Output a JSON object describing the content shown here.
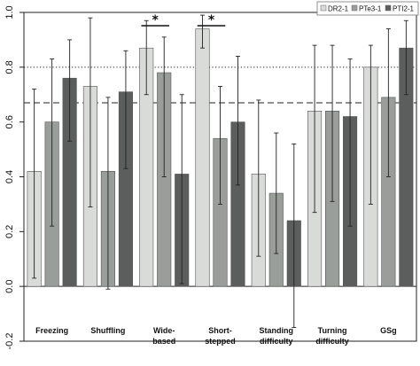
{
  "chart_data": {
    "type": "bar",
    "categories": [
      [
        "Freezing"
      ],
      [
        "Shuffling"
      ],
      [
        "Wide-",
        "based"
      ],
      [
        "Short-",
        "stepped"
      ],
      [
        "Standing",
        "difficulty"
      ],
      [
        "Turning",
        "difficulty"
      ],
      [
        "GSg"
      ]
    ],
    "series": [
      {
        "name": "DR2-1",
        "color": "#d9dbd9",
        "values": [
          0.42,
          0.73,
          0.87,
          0.94,
          0.41,
          0.64,
          0.8
        ],
        "error_low": [
          0.03,
          0.29,
          0.7,
          0.87,
          0.11,
          0.27,
          0.3
        ],
        "error_high": [
          0.72,
          0.98,
          0.97,
          0.99,
          0.68,
          0.88,
          0.88
        ]
      },
      {
        "name": "PTe3-1",
        "color": "#9a9e9b",
        "values": [
          0.6,
          0.42,
          0.78,
          0.54,
          0.34,
          0.64,
          0.69
        ],
        "error_low": [
          0.22,
          -0.01,
          0.4,
          0.3,
          0.12,
          0.31,
          0.4
        ],
        "error_high": [
          0.83,
          0.69,
          0.91,
          0.73,
          0.56,
          0.88,
          0.94
        ]
      },
      {
        "name": "PTI2-1",
        "color": "#5b5e5c",
        "values": [
          0.76,
          0.71,
          0.41,
          0.6,
          0.24,
          0.62,
          0.87
        ],
        "error_low": [
          0.53,
          0.43,
          0.01,
          0.37,
          -0.15,
          0.22,
          0.7
        ],
        "error_high": [
          0.9,
          0.86,
          0.7,
          0.84,
          0.52,
          0.83,
          0.97
        ]
      }
    ],
    "y_ticks": [
      "-0.2",
      "0.0",
      "0.2",
      "0.4",
      "0.6",
      "0.8",
      "1.0"
    ],
    "ylim": [
      -0.2,
      1.0
    ],
    "reference_lines": [
      {
        "y": 0.8,
        "style": "dotted"
      },
      {
        "y": 0.67,
        "style": "dashed"
      },
      {
        "y": 0.0,
        "style": "solid"
      }
    ],
    "significance": [
      {
        "category_index": 2,
        "label": "*"
      },
      {
        "category_index": 3,
        "label": "*"
      }
    ],
    "legend": {
      "placement": "top-right",
      "items": [
        "DR2-1",
        "PTe3-1",
        "PTI2-1"
      ]
    },
    "title": "",
    "xlabel": "",
    "ylabel": ""
  }
}
